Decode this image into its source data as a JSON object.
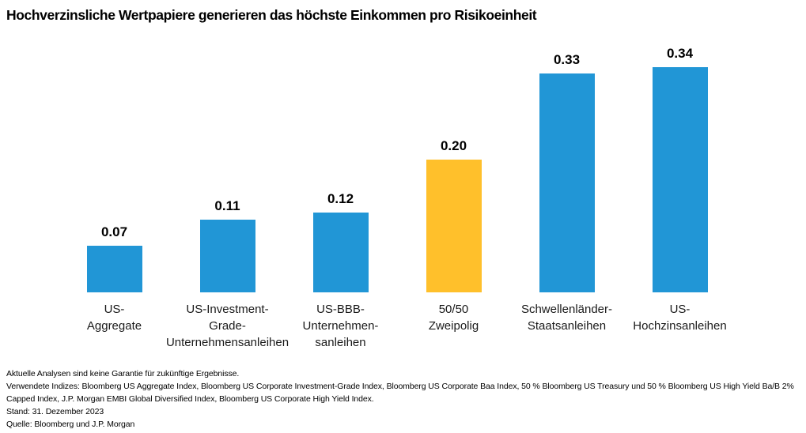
{
  "title": "Hochverzinsliche Wertpapiere generieren das höchste Einkommen pro Risikoeinheit",
  "colors": {
    "bar_blue": "#2196D6",
    "bar_yellow": "#FFC02B",
    "text": "#000000",
    "label_text": "#1a1a1a",
    "background": "#ffffff"
  },
  "chart_data": {
    "type": "bar",
    "title": "Hochverzinsliche Wertpapiere generieren das höchste Einkommen pro Risikoeinheit",
    "categories": [
      "US-Aggregate",
      "US-Investment-Grade-Unternehmensanleihen",
      "US-BBB-Unternehmensanleihen",
      "50/50 Zweipolig",
      "Schwellenländer-Staatsanleihen",
      "US-Hochzinsanleihen"
    ],
    "category_lines": [
      [
        "US-",
        "Aggregate"
      ],
      [
        "US-Investment-",
        "Grade-",
        "Unternehmensanleihen"
      ],
      [
        "US-BBB-",
        "Unternehmen-",
        "sanleihen"
      ],
      [
        "50/50",
        "Zweipolig"
      ],
      [
        "Schwellenländer-",
        "Staatsanleihen"
      ],
      [
        "US-",
        "Hochzinsanleihen"
      ]
    ],
    "values": [
      0.07,
      0.11,
      0.12,
      0.2,
      0.33,
      0.34
    ],
    "value_labels": [
      "0.07",
      "0.11",
      "0.12",
      "0.20",
      "0.33",
      "0.34"
    ],
    "bar_colors": [
      "blue",
      "blue",
      "blue",
      "yellow",
      "blue",
      "blue"
    ],
    "highlight_index": 3,
    "xlabel": "",
    "ylabel": "",
    "ylim": [
      0,
      0.34
    ],
    "grid": false,
    "legend": false,
    "data_labels_position": "above-bars"
  },
  "footer": {
    "disclaimer": "Aktuelle Analysen sind keine Garantie für zukünftige Ergebnisse.",
    "indices": "Verwendete Indizes: Bloomberg US Aggregate Index, Bloomberg US Corporate Investment-Grade Index, Bloomberg US Corporate Baa Index, 50 % Bloomberg US Treasury und 50 % Bloomberg US High Yield Ba/B 2% Capped Index, J.P. Morgan EMBI Global Diversified Index, Bloomberg US Corporate High Yield Index.",
    "as_of": "Stand: 31. Dezember 2023",
    "source": "Quelle: Bloomberg und J.P. Morgan"
  }
}
